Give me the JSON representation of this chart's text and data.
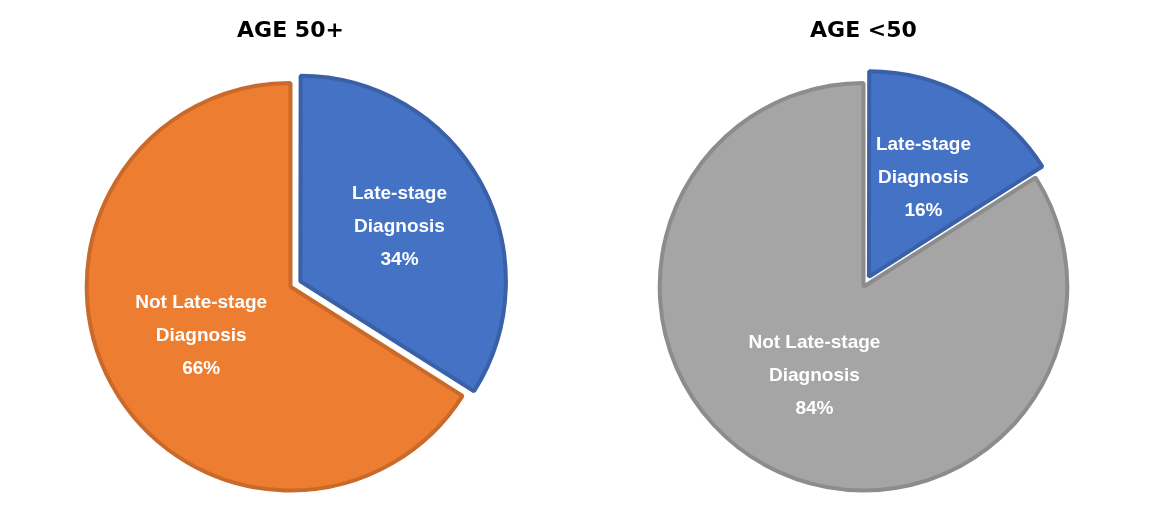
{
  "chart_data": [
    {
      "type": "pie",
      "title": "AGE 50+",
      "categories": [
        "Late-stage Diagnosis",
        "Not Late-stage Diagnosis"
      ],
      "values": [
        34,
        66
      ],
      "colors": [
        "#4472c4",
        "#ed7d31"
      ],
      "value_labels": [
        "34%",
        "66%"
      ],
      "legend": false
    },
    {
      "type": "pie",
      "title": "AGE <50",
      "categories": [
        "Late-stage Diagnosis",
        "Not Late-stage Diagnosis"
      ],
      "values": [
        16,
        84
      ],
      "colors": [
        "#4472c4",
        "#a5a5a5"
      ],
      "value_labels": [
        "16%",
        "84%"
      ],
      "legend": false
    }
  ]
}
